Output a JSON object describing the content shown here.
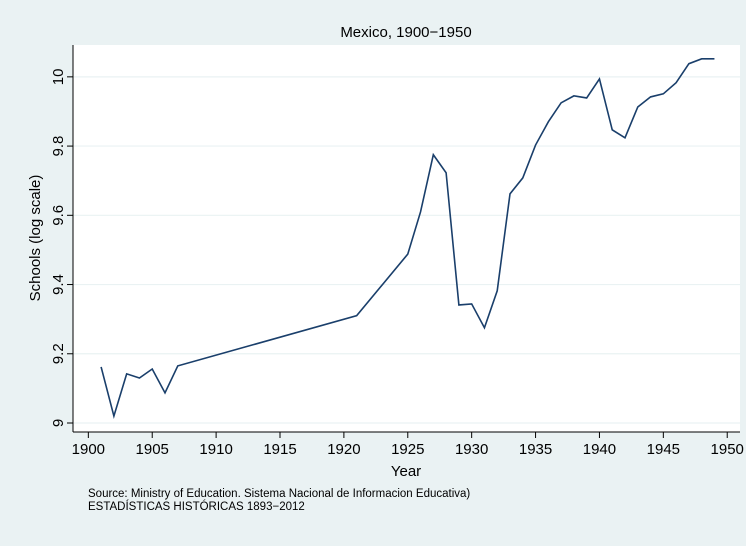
{
  "chart_data": {
    "type": "line",
    "title": "Mexico, 1900−1950",
    "x_label": "Year",
    "y_label": "Schools (log scale)",
    "note_lines": [
      "Source: Ministry of Education. Sistema Nacional de Informacion Educativa)",
      "ESTADÍSTICAS HISTÓRICAS 1893−2012"
    ],
    "x": [
      1901,
      1902,
      1903,
      1904,
      1905,
      1906,
      1907,
      1921,
      1925,
      1926,
      1927,
      1928,
      1929,
      1930,
      1931,
      1932,
      1933,
      1934,
      1935,
      1936,
      1937,
      1938,
      1939,
      1940,
      1941,
      1942,
      1943,
      1944,
      1945,
      1946,
      1947,
      1948,
      1949
    ],
    "series": [
      {
        "name": "Schools",
        "color": "#1a3f6b",
        "values": [
          9.162,
          9.02,
          9.142,
          9.13,
          9.156,
          9.087,
          9.165,
          9.31,
          9.488,
          9.61,
          9.775,
          9.723,
          9.341,
          9.344,
          9.275,
          9.382,
          9.662,
          9.708,
          9.803,
          9.87,
          9.925,
          9.945,
          9.939,
          9.994,
          9.847,
          9.824,
          9.913,
          9.942,
          9.951,
          9.983,
          10.038,
          10.052,
          10.052
        ]
      }
    ],
    "xlim": [
      1898.8,
      1951.0
    ],
    "xticks": [
      1900,
      1905,
      1910,
      1915,
      1920,
      1925,
      1930,
      1935,
      1940,
      1945,
      1950
    ],
    "ylim": [
      8.974,
      10.092
    ],
    "yticks": [
      9,
      9.2,
      9.4,
      9.6,
      9.8,
      10
    ],
    "grid": true
  }
}
